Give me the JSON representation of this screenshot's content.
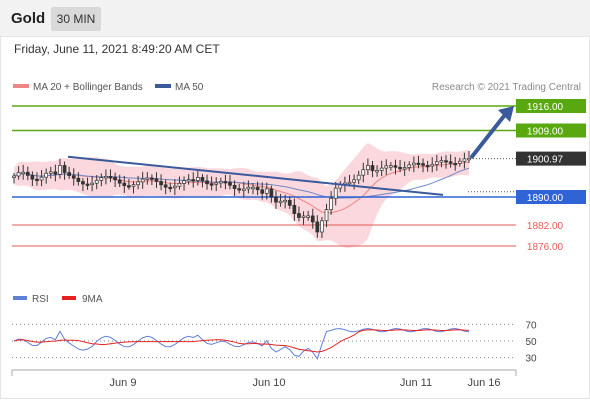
{
  "header": {
    "title": "Gold",
    "timeframe": "30 MIN"
  },
  "timestamp": "Friday, June 11, 2021 8:49:20 AM CET",
  "legend": {
    "ma20_label": "MA 20 + Bollinger Bands",
    "ma50_label": "MA 50",
    "credit": "Research © 2021 Trading Central"
  },
  "rsi_legend": {
    "rsi_label": "RSI",
    "ma_label": "9MA"
  },
  "colors": {
    "green_level": "#5aa80f",
    "blue_level": "#2f63d6",
    "red_level": "#e55a5a",
    "price_tag": "#333333",
    "trendline": "#3a5a9c",
    "bollinger": "#f6b5bd",
    "ma20": "#f08585",
    "ma50": "#6f86c7",
    "rsi": "#5f80d9",
    "rsi_ma": "#e52222"
  },
  "chart_data": [
    {
      "type": "candlestick",
      "title": "Gold",
      "ylim": [
        1866,
        1922
      ],
      "x_tick_labels": [
        "Jun 9",
        "Jun 10",
        "Jun 11",
        "Jun 16"
      ],
      "current_price": 1900.97,
      "levels": [
        {
          "value": 1916.0,
          "label": "1916.00",
          "kind": "resistance"
        },
        {
          "value": 1909.0,
          "label": "1909.00",
          "kind": "resistance"
        },
        {
          "value": 1890.0,
          "label": "1890.00",
          "kind": "pivot"
        },
        {
          "value": 1882.0,
          "label": "1882.00",
          "kind": "support"
        },
        {
          "value": 1876.0,
          "label": "1876.00",
          "kind": "support"
        }
      ],
      "trendline": [
        [
          0.11,
          1901.5
        ],
        [
          0.75,
          1890.6
        ]
      ],
      "forecast_arrow": {
        "from": 1900.97,
        "to": 1916.0
      },
      "series": [
        {
          "name": "MA 20 + Bollinger Bands"
        },
        {
          "name": "MA 50"
        }
      ]
    },
    {
      "type": "line",
      "ylim": [
        20,
        80
      ],
      "y_tick_labels": [
        "70",
        "50",
        "30"
      ],
      "series": [
        {
          "name": "RSI",
          "last": 63
        },
        {
          "name": "9MA",
          "last": 63
        }
      ]
    }
  ]
}
